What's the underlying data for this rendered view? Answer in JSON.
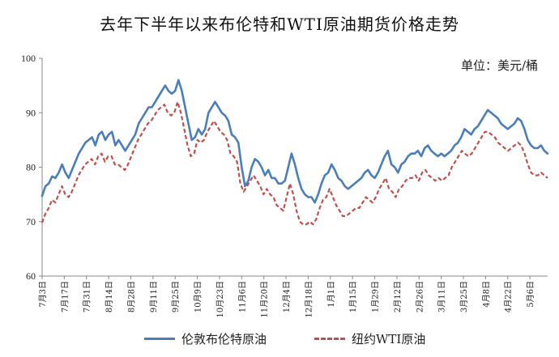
{
  "chart_data": {
    "type": "line",
    "title": "去年下半年以来布伦特和WTI原油期货价格走势",
    "unit": "单位：美元/桶",
    "ylim": [
      60,
      100
    ],
    "yticks": [
      60,
      70,
      80,
      90,
      100
    ],
    "xticks": [
      "7月3日",
      "7月17日",
      "7月31日",
      "8月14日",
      "8月28日",
      "9月11日",
      "9月25日",
      "10月9日",
      "10月23日",
      "11月6日",
      "11月20日",
      "12月4日",
      "12月18日",
      "1月1日",
      "1月15日",
      "1月29日",
      "2月12日",
      "2月26日",
      "3月11日",
      "3月25日",
      "4月8日",
      "4月22日",
      "5月6日"
    ],
    "grid": false,
    "legend_position": "bottom",
    "series": [
      {
        "name": "伦敦布伦特原油",
        "color": "#4a7ebb",
        "style": "solid",
        "values": [
          74.7,
          76.5,
          77,
          78.3,
          78,
          79,
          80.5,
          79,
          78,
          79.5,
          81,
          82.5,
          83.5,
          84.5,
          85,
          85.5,
          84,
          86,
          86.5,
          85,
          86,
          86.5,
          84,
          85,
          84,
          83,
          84,
          85,
          86,
          88,
          89,
          90,
          91,
          91,
          92,
          93,
          94,
          95,
          94,
          93.5,
          94,
          96,
          94,
          91,
          88,
          85,
          85.5,
          87,
          86,
          87,
          90,
          91,
          92,
          91,
          90,
          89.5,
          88.5,
          86,
          85.5,
          84.5,
          80,
          76.5,
          77.5,
          80,
          81.5,
          81,
          80,
          78.5,
          79.5,
          78,
          78,
          77,
          77,
          77.5,
          80,
          82.5,
          80.5,
          78,
          76,
          75,
          74.5,
          74.5,
          73.5,
          75,
          77,
          78.5,
          79,
          80.5,
          79.5,
          78,
          77.5,
          76.5,
          76,
          76.5,
          77,
          77.5,
          78,
          79,
          79.5,
          78.5,
          78,
          79,
          80.5,
          82,
          83,
          80.5,
          80,
          79,
          80.5,
          81,
          82,
          82.5,
          82.5,
          83,
          82,
          83.5,
          84,
          83,
          82.5,
          82,
          82.5,
          82,
          82.5,
          83,
          84,
          84.5,
          85.5,
          87,
          86.5,
          86,
          87,
          87.5,
          88.5,
          89.5,
          90.5,
          90,
          89.5,
          89,
          88,
          87.5,
          87,
          87.5,
          88,
          89,
          88.5,
          87,
          85,
          84,
          83.5,
          83.5,
          84,
          83,
          82.5
        ]
      },
      {
        "name": "纽约WTI原油",
        "color": "#c0504d",
        "style": "dashed",
        "values": [
          69.8,
          71.5,
          72.5,
          74,
          73.5,
          75,
          76.5,
          75,
          74.5,
          75.5,
          77,
          78.5,
          79.5,
          80.5,
          81,
          81.5,
          80.5,
          82,
          82.5,
          81,
          82,
          82,
          80.5,
          80.5,
          80,
          79.5,
          80.5,
          82,
          83.5,
          85,
          86,
          87,
          88,
          88.5,
          89.5,
          90.5,
          91,
          91.5,
          90,
          89.5,
          90,
          92,
          90,
          87,
          84,
          82,
          82.5,
          85,
          84.5,
          85,
          86.5,
          87.5,
          88.5,
          87.5,
          86.5,
          86,
          85,
          82.5,
          82,
          81,
          77,
          75.5,
          76.5,
          77.5,
          78.5,
          77.5,
          76.5,
          75,
          76,
          75,
          74.5,
          73,
          72.5,
          72,
          74.5,
          77,
          75,
          72,
          70,
          69.5,
          69.5,
          70,
          69.5,
          70.5,
          72.5,
          74,
          74.5,
          76,
          74.5,
          73,
          72,
          71,
          71,
          71.5,
          72,
          72.5,
          72.5,
          73.5,
          74.5,
          74,
          73.5,
          74.5,
          76,
          77,
          78,
          76,
          75.5,
          74.5,
          76,
          76.5,
          77.5,
          78,
          78,
          78.5,
          77.5,
          79,
          79.5,
          78.5,
          78,
          77.5,
          78,
          77.5,
          78,
          78.5,
          80,
          81,
          82,
          83,
          82.5,
          82,
          82.5,
          83.5,
          84.5,
          85.5,
          86.5,
          86.5,
          86,
          85.5,
          84.5,
          84,
          83.5,
          83,
          83.5,
          84,
          84.5,
          84,
          82.5,
          80.5,
          79,
          78.5,
          78.5,
          79,
          78.5,
          78
        ]
      }
    ]
  }
}
